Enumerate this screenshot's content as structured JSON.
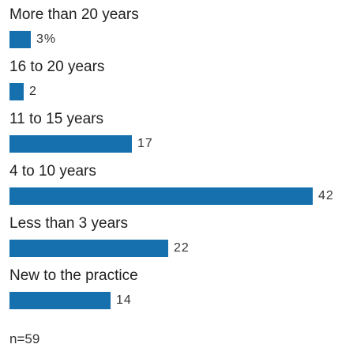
{
  "chart_data": {
    "type": "bar",
    "orientation": "horizontal",
    "categories": [
      "More than 20 years",
      "16 to 20 years",
      "11 to 15 years",
      "4 to 10 years",
      "Less than 3 years",
      "New to the practice"
    ],
    "values": [
      3,
      2,
      17,
      42,
      22,
      14
    ],
    "value_labels": [
      "3%",
      "2",
      "17",
      "42",
      "22",
      "14"
    ],
    "unit": "%",
    "bar_color": "#1670ad",
    "xlim": [
      0,
      42
    ],
    "grid": false,
    "legend": "none",
    "note": "n=59"
  }
}
